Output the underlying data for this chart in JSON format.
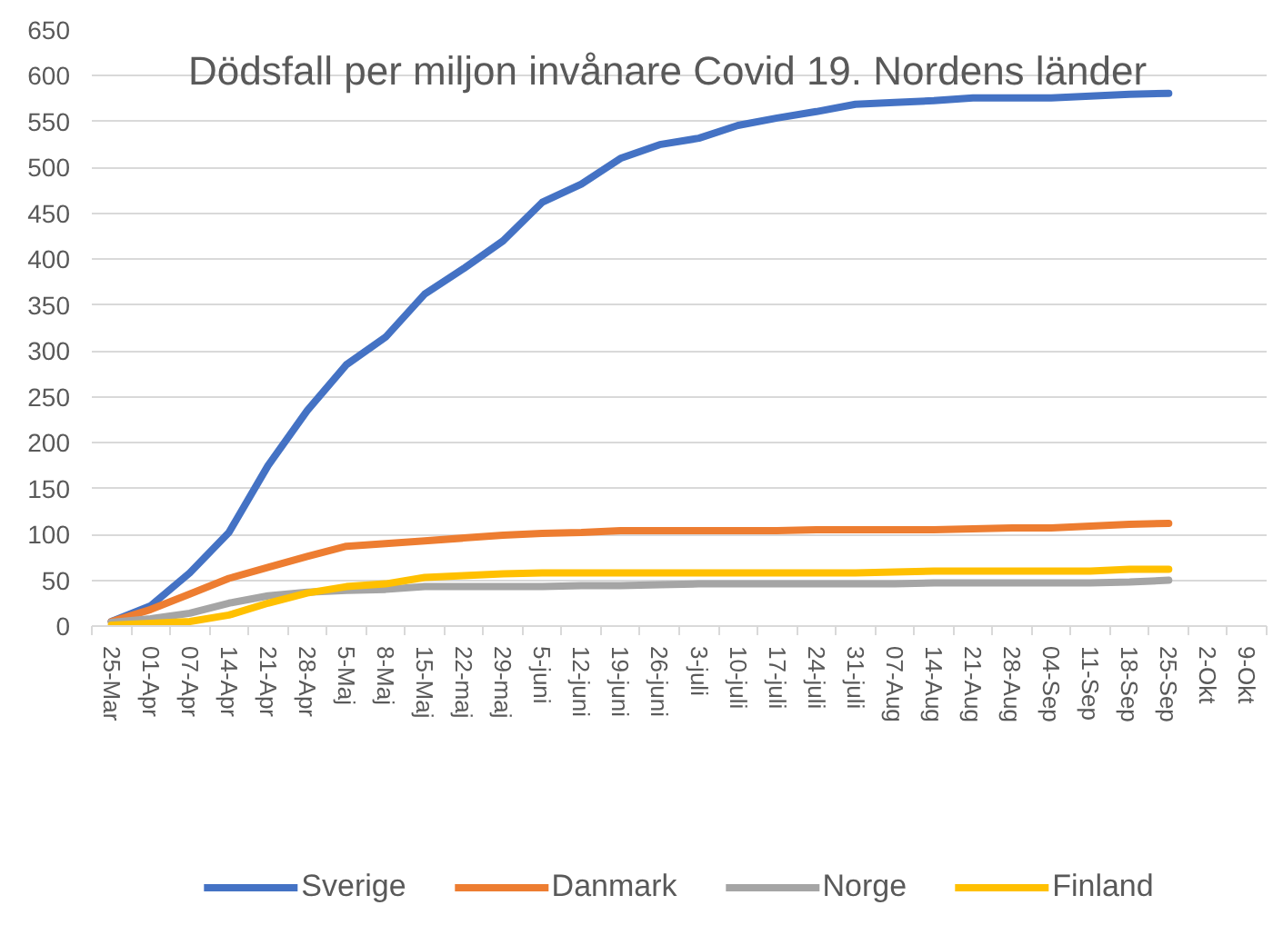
{
  "chart_data": {
    "type": "line",
    "title": "Dödsfall per miljon invånare Covid 19. Nordens länder",
    "categories": [
      "25-Mar",
      "01-Apr",
      "07-Apr",
      "14-Apr",
      "21-Apr",
      "28-Apr",
      "5-Maj",
      "8-Maj",
      "15-Maj",
      "22-maj",
      "29-maj",
      "5-juni",
      "12-juni",
      "19-juni",
      "26-juni",
      "3-juli",
      "10-juli",
      "17-juli",
      "24-juli",
      "31-juli",
      "07-Aug",
      "14-Aug",
      "21-Aug",
      "28-Aug",
      "04-Sep",
      "11-Sep",
      "18-Sep",
      "25-Sep",
      "2-Okt",
      "9-Okt"
    ],
    "series": [
      {
        "name": "Sverige",
        "color": "#4472c4",
        "values": [
          5,
          22,
          58,
          102,
          175,
          235,
          285,
          315,
          362,
          390,
          420,
          462,
          482,
          510,
          525,
          532,
          546,
          554,
          561,
          569,
          571,
          573,
          576,
          576,
          576,
          578,
          580,
          581,
          null,
          null
        ]
      },
      {
        "name": "Danmark",
        "color": "#ed7d31",
        "values": [
          5,
          18,
          35,
          52,
          64,
          76,
          87,
          90,
          93,
          96,
          99,
          101,
          102,
          104,
          104,
          104,
          104,
          104,
          105,
          105,
          105,
          105,
          106,
          107,
          107,
          109,
          111,
          112,
          null,
          null
        ]
      },
      {
        "name": "Norge",
        "color": "#a5a5a5",
        "values": [
          4,
          8,
          14,
          25,
          33,
          37,
          39,
          40,
          43,
          43,
          43,
          43,
          44,
          44,
          45,
          46,
          46,
          46,
          46,
          46,
          46,
          47,
          47,
          47,
          47,
          47,
          48,
          50,
          null,
          null
        ]
      },
      {
        "name": "Finland",
        "color": "#ffc000",
        "values": [
          1,
          3,
          5,
          12,
          25,
          36,
          43,
          46,
          53,
          55,
          57,
          58,
          58,
          58,
          58,
          58,
          58,
          58,
          58,
          58,
          59,
          60,
          60,
          60,
          60,
          60,
          62,
          62,
          null,
          null
        ]
      }
    ],
    "ylim": [
      0,
      650
    ],
    "yticks": [
      0,
      50,
      100,
      150,
      200,
      250,
      300,
      350,
      400,
      450,
      500,
      550,
      600,
      650
    ],
    "grid": "y",
    "legend": "bottom",
    "marker": "none",
    "line_style": "solid"
  }
}
